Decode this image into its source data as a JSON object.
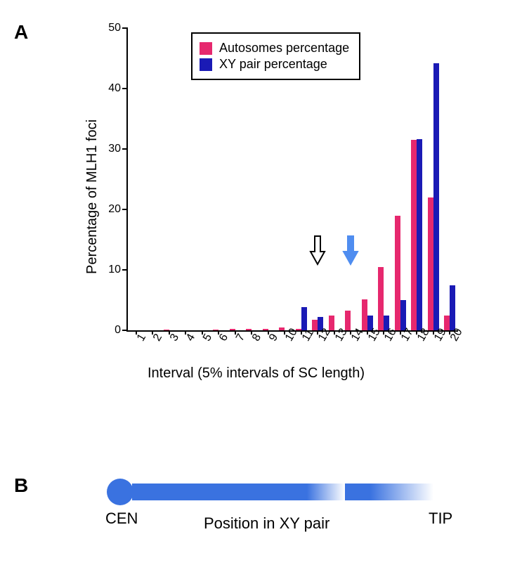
{
  "panel_a": {
    "label": "A",
    "chart": {
      "type": "bar",
      "ylabel": "Percentage of MLH1 foci",
      "xlabel": "Interval (5% intervals of SC length)",
      "ylim": [
        0,
        50
      ],
      "yticks": [
        0,
        10,
        20,
        30,
        40,
        50
      ],
      "ytick_step": 10,
      "categories": [
        "1",
        "2",
        "3",
        "4",
        "5",
        "6",
        "7",
        "8",
        "9",
        "10",
        "11",
        "12",
        "13",
        "14",
        "15",
        "16",
        "17",
        "18",
        "19",
        "20"
      ],
      "series": [
        {
          "name": "Autosomes percentage",
          "color": "#e6286e",
          "values": [
            0,
            0,
            0.1,
            0,
            0,
            0.1,
            0.25,
            0.25,
            0.25,
            0.5,
            0.2,
            1.8,
            2.4,
            3.2,
            5.1,
            10.5,
            19.0,
            31.5,
            22.0,
            2.4
          ]
        },
        {
          "name": "XY pair percentage",
          "color": "#1a1ab5",
          "values": [
            0,
            0,
            0,
            0,
            0,
            0,
            0,
            0,
            0,
            0,
            3.8,
            2.2,
            0,
            0,
            2.4,
            2.4,
            5.0,
            31.6,
            44.2,
            7.5
          ]
        }
      ],
      "bar_width": 0.35,
      "background_color": "#ffffff",
      "title_fontsize": 16,
      "label_fontsize": 20,
      "tick_fontsize": 16,
      "legend": {
        "position": "top-center",
        "border_color": "#000000",
        "entries": [
          {
            "label": "Autosomes percentage",
            "color": "#e6286e"
          },
          {
            "label": "XY pair percentage",
            "color": "#1a1ab5"
          }
        ],
        "fontsize": 18
      },
      "annotations": [
        {
          "id": "outline-arrow",
          "at_category": "12",
          "arrow_fill": "#ffffff",
          "arrow_stroke": "#000000"
        },
        {
          "id": "filled-arrow",
          "at_category": "14",
          "arrow_fill": "#4f8df0",
          "arrow_stroke": "#4f8df0"
        }
      ]
    }
  },
  "panel_b": {
    "label": "B",
    "schematic": {
      "type": "linear-positional-bar",
      "caption": "Position in XY pair",
      "left_label": "CEN",
      "right_label": "TIP",
      "primary_color": "#3a72e0",
      "fade_color": "#ffffff",
      "segments": [
        {
          "kind": "solid",
          "from": 0.0,
          "to": 0.55
        },
        {
          "kind": "fade-right",
          "from": 0.55,
          "to": 0.67
        },
        {
          "kind": "solid",
          "from": 0.67,
          "to": 0.75
        },
        {
          "kind": "fade-right",
          "from": 0.75,
          "to": 0.95
        },
        {
          "kind": "empty",
          "from": 0.95,
          "to": 1.0
        }
      ],
      "label_fontsize": 22
    }
  }
}
